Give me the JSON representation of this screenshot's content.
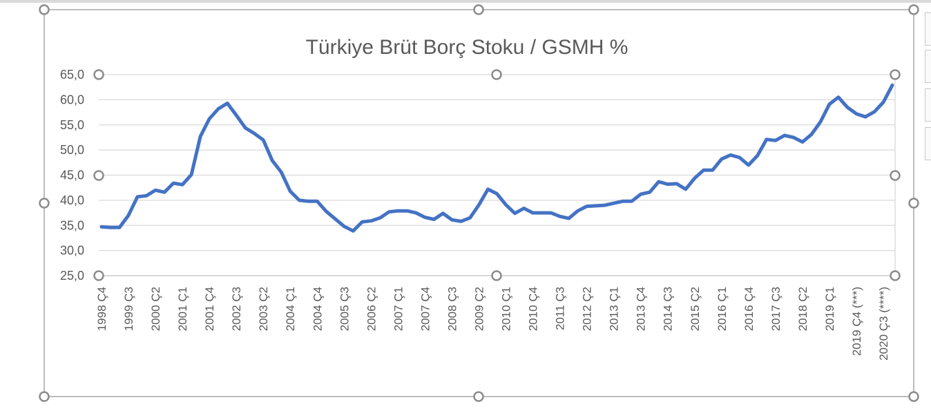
{
  "chart_data": {
    "type": "line",
    "title": "Türkiye Brüt Borç Stoku / GSMH %",
    "xlabel": "",
    "ylabel": "",
    "ylim": [
      25,
      65
    ],
    "yticks": [
      "65,0",
      "60,0",
      "55,0",
      "50,0",
      "45,0",
      "40,0",
      "35,0",
      "30,0",
      "25,0"
    ],
    "ytick_values": [
      65,
      60,
      55,
      50,
      45,
      40,
      35,
      30,
      25
    ],
    "grid": true,
    "legend": "none",
    "line_color": "#4472C4",
    "x_tick_labels": [
      "1998 Ç4",
      "1999 Ç3",
      "2000 Ç2",
      "2001 Ç1",
      "2001 Ç4",
      "2002 Ç3",
      "2003 Ç2",
      "2004 Ç1",
      "2004 Ç4",
      "2005 Ç3",
      "2006 Ç2",
      "2007 Ç1",
      "2007 Ç4",
      "2008 Ç3",
      "2009 Ç2",
      "2010 Ç1",
      "2010 Ç4",
      "2011 Ç3",
      "2012 Ç2",
      "2013 Ç1",
      "2013 Ç4",
      "2014 Ç3",
      "2015 Ç2",
      "2016 Ç1",
      "2016 Ç4",
      "2017 Ç3",
      "2018 Ç2",
      "2019 Ç1",
      "2019 Ç4 (***)",
      "2020 Ç3 (****)"
    ],
    "values": [
      34.7,
      34.6,
      34.6,
      37.0,
      40.7,
      40.9,
      42.0,
      41.6,
      43.4,
      43.1,
      45.1,
      52.7,
      56.2,
      58.2,
      59.3,
      56.9,
      54.4,
      53.3,
      52.0,
      47.9,
      45.6,
      41.8,
      40.0,
      39.8,
      39.8,
      37.8,
      36.3,
      34.8,
      33.9,
      35.7,
      35.9,
      36.5,
      37.7,
      37.9,
      37.9,
      37.5,
      36.6,
      36.2,
      37.4,
      36.1,
      35.8,
      36.5,
      39.1,
      42.2,
      41.3,
      39.1,
      37.4,
      38.4,
      37.5,
      37.5,
      37.5,
      36.8,
      36.4,
      37.9,
      38.8,
      38.9,
      39.0,
      39.4,
      39.8,
      39.8,
      41.2,
      41.6,
      43.7,
      43.2,
      43.3,
      42.2,
      44.4,
      46.0,
      46.0,
      48.2,
      49.0,
      48.5,
      47.0,
      48.9,
      52.1,
      51.9,
      52.9,
      52.5,
      51.6,
      53.1,
      55.6,
      59.1,
      60.5,
      58.5,
      57.2,
      56.6,
      57.6,
      59.5,
      62.9
    ]
  }
}
